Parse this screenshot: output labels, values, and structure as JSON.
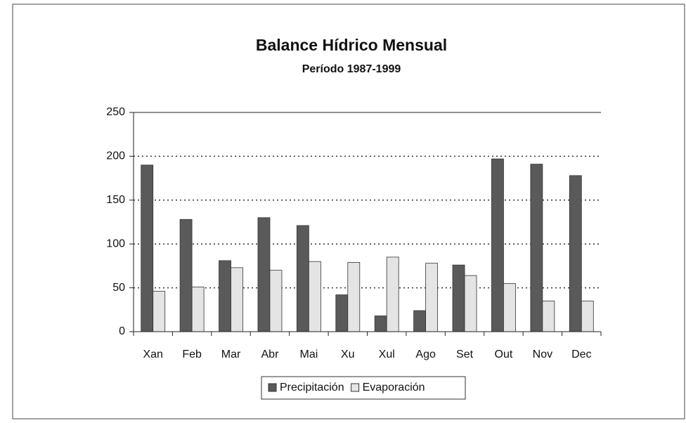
{
  "chart_data": {
    "type": "bar",
    "title": "Balance Hídrico Mensual",
    "subtitle": "Período 1987-1999",
    "categories": [
      "Xan",
      "Feb",
      "Mar",
      "Abr",
      "Mai",
      "Xu",
      "Xul",
      "Ago",
      "Set",
      "Out",
      "Nov",
      "Dec"
    ],
    "series": [
      {
        "name": "Precipitación",
        "color": "#5a5a5a",
        "values": [
          190,
          128,
          81,
          130,
          121,
          42,
          18,
          24,
          76,
          197,
          191,
          178
        ]
      },
      {
        "name": "Evaporación",
        "color": "#e4e4e4",
        "values": [
          46,
          51,
          73,
          70,
          80,
          79,
          85,
          78,
          64,
          55,
          35,
          35
        ]
      }
    ],
    "ylim": [
      0,
      250
    ],
    "yticks": [
      0,
      50,
      100,
      150,
      200,
      250
    ],
    "grid": true,
    "legend": "bottom"
  }
}
